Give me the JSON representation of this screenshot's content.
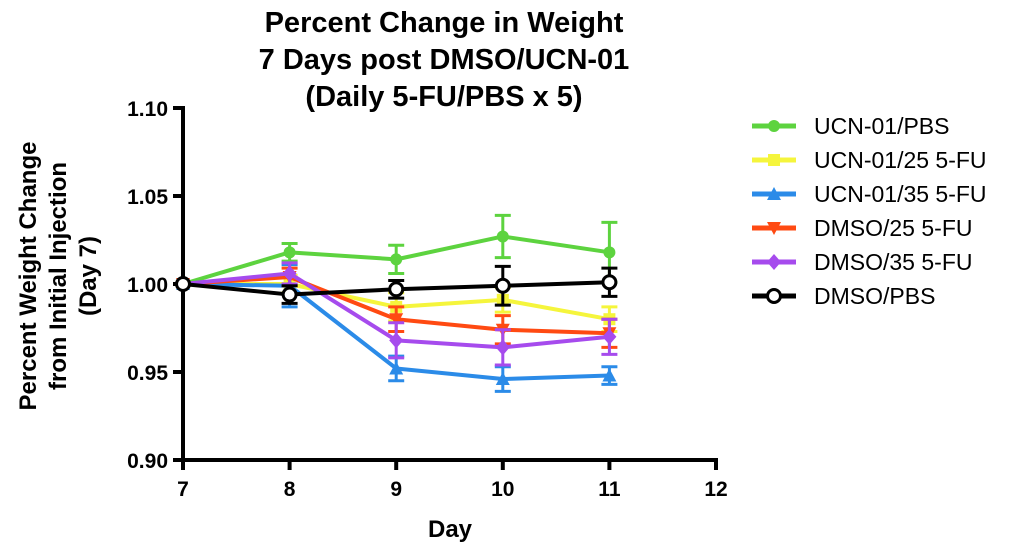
{
  "chart_data": {
    "type": "line",
    "title": [
      "Percent Change in Weight",
      "7 Days post DMSO/UCN-01",
      "(Daily 5-FU/PBS x 5)"
    ],
    "xlabel": "Day",
    "ylabel": [
      "Percent Weight  Change",
      "from Initial Injection",
      "(Day 7)"
    ],
    "xlim": [
      7,
      12
    ],
    "ylim": [
      0.9,
      1.1
    ],
    "xticks": [
      7,
      8,
      9,
      10,
      11,
      12
    ],
    "xtick_labels": [
      "7",
      "8",
      "9",
      "10",
      "11",
      "12"
    ],
    "yticks": [
      0.9,
      0.95,
      1.0,
      1.05,
      1.1
    ],
    "ytick_labels": [
      "0.90",
      "0.95",
      "1.00",
      "1.05",
      "1.10"
    ],
    "x": [
      7,
      8,
      9,
      10,
      11
    ],
    "legend_position": "right",
    "series": [
      {
        "name": "UCN-01/PBS",
        "color": "#5dd33f",
        "marker": "circle",
        "values": [
          1.0,
          1.018,
          1.014,
          1.027,
          1.018
        ],
        "errors": [
          0,
          0.005,
          0.008,
          0.012,
          0.017
        ]
      },
      {
        "name": "UCN-01/25 5-FU",
        "color": "#f5f53c",
        "marker": "square",
        "values": [
          1.0,
          1.0,
          0.987,
          0.991,
          0.98
        ],
        "errors": [
          0,
          0.005,
          0.008,
          0.007,
          0.007
        ]
      },
      {
        "name": "UCN-01/35 5-FU",
        "color": "#2b8be8",
        "marker": "triangle-up",
        "values": [
          1.0,
          0.999,
          0.952,
          0.946,
          0.948
        ],
        "errors": [
          0,
          0.012,
          0.007,
          0.007,
          0.005
        ]
      },
      {
        "name": "DMSO/25 5-FU",
        "color": "#ff4a12",
        "marker": "triangle-down",
        "values": [
          1.0,
          1.004,
          0.98,
          0.974,
          0.972
        ],
        "errors": [
          0,
          0.005,
          0.007,
          0.008,
          0.008
        ]
      },
      {
        "name": "DMSO/35 5-FU",
        "color": "#a64bed",
        "marker": "diamond",
        "values": [
          1.0,
          1.006,
          0.968,
          0.964,
          0.97
        ],
        "errors": [
          0,
          0.006,
          0.01,
          0.01,
          0.01
        ]
      },
      {
        "name": "DMSO/PBS",
        "color": "#000000",
        "marker": "open-circle",
        "values": [
          1.0,
          0.994,
          0.997,
          0.999,
          1.001
        ],
        "errors": [
          0,
          0.005,
          0.005,
          0.011,
          0.008
        ]
      }
    ]
  }
}
